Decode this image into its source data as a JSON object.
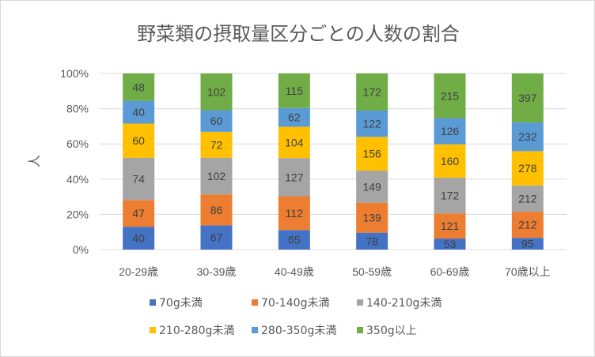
{
  "chart_data": {
    "type": "bar",
    "stacked": "percent",
    "title": "野菜類の摂取量区分ごとの人数の割合",
    "ylabel": "人",
    "ylim": [
      0,
      100
    ],
    "yticks": [
      "0%",
      "20%",
      "40%",
      "60%",
      "80%",
      "100%"
    ],
    "categories": [
      "20-29歳",
      "30-39歳",
      "40-49歳",
      "50-59歳",
      "60-69歳",
      "70歳以上"
    ],
    "legend_position": "bottom",
    "grid": true,
    "series": [
      {
        "name": "70g未満",
        "color": "#4472C4",
        "values": [
          40,
          67,
          65,
          78,
          53,
          95
        ]
      },
      {
        "name": "70-140g未満",
        "color": "#ED7D31",
        "values": [
          47,
          86,
          112,
          139,
          121,
          212
        ]
      },
      {
        "name": "140-210g未満",
        "color": "#A5A5A5",
        "values": [
          74,
          102,
          127,
          149,
          172,
          212
        ]
      },
      {
        "name": "210-280g未満",
        "color": "#FFC000",
        "values": [
          60,
          72,
          104,
          156,
          160,
          278
        ]
      },
      {
        "name": "280-350g未満",
        "color": "#5B9BD5",
        "values": [
          40,
          60,
          62,
          122,
          126,
          232
        ]
      },
      {
        "name": "350g以上",
        "color": "#70AD47",
        "values": [
          48,
          102,
          115,
          172,
          215,
          397
        ]
      }
    ]
  }
}
